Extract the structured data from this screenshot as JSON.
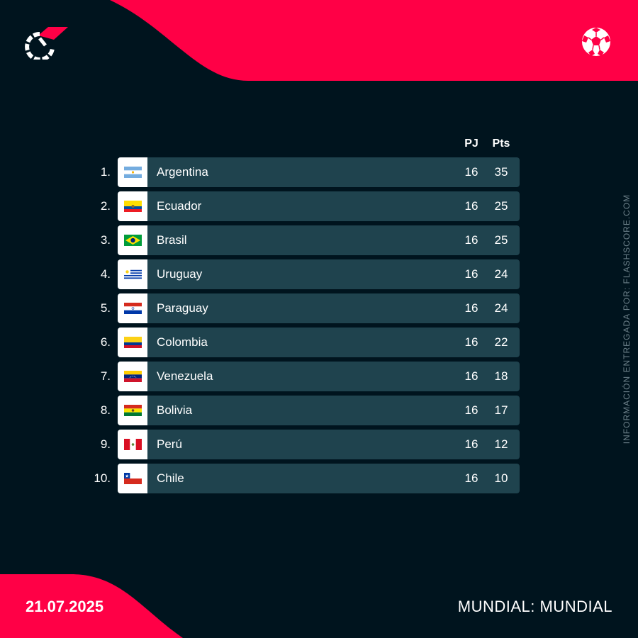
{
  "brand": {
    "accent": "#ff0046",
    "background": "#00141e",
    "row_color": "#1f434e"
  },
  "logo": {
    "icon": "flashscore-logo-icon"
  },
  "sport": {
    "icon": "soccer-ball-icon"
  },
  "table": {
    "headers": {
      "played": "PJ",
      "points": "Pts"
    },
    "rows": [
      {
        "rank": "1.",
        "team": "Argentina",
        "played": "16",
        "points": "35",
        "flag": "argentina-flag-icon"
      },
      {
        "rank": "2.",
        "team": "Ecuador",
        "played": "16",
        "points": "25",
        "flag": "ecuador-flag-icon"
      },
      {
        "rank": "3.",
        "team": "Brasil",
        "played": "16",
        "points": "25",
        "flag": "brazil-flag-icon"
      },
      {
        "rank": "4.",
        "team": "Uruguay",
        "played": "16",
        "points": "24",
        "flag": "uruguay-flag-icon"
      },
      {
        "rank": "5.",
        "team": "Paraguay",
        "played": "16",
        "points": "24",
        "flag": "paraguay-flag-icon"
      },
      {
        "rank": "6.",
        "team": "Colombia",
        "played": "16",
        "points": "22",
        "flag": "colombia-flag-icon"
      },
      {
        "rank": "7.",
        "team": "Venezuela",
        "played": "16",
        "points": "18",
        "flag": "venezuela-flag-icon"
      },
      {
        "rank": "8.",
        "team": "Bolivia",
        "played": "16",
        "points": "17",
        "flag": "bolivia-flag-icon"
      },
      {
        "rank": "9.",
        "team": "Perú",
        "played": "16",
        "points": "12",
        "flag": "peru-flag-icon"
      },
      {
        "rank": "10.",
        "team": "Chile",
        "played": "16",
        "points": "10",
        "flag": "chile-flag-icon"
      }
    ]
  },
  "footer": {
    "date": "21.07.2025",
    "competition": "MUNDIAL: MUNDIAL"
  },
  "source": "INFORMACIÓN ENTREGADA POR: FLASHSCORE.COM"
}
